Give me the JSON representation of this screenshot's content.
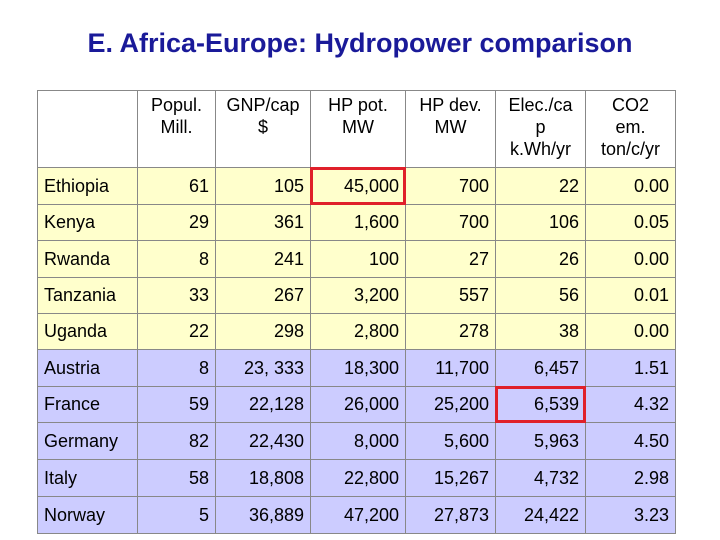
{
  "title": "E. Africa-Europe: Hydropower comparison",
  "table": {
    "header": [
      [
        "Popul.",
        "Mill."
      ],
      [
        "GNP/cap",
        "$"
      ],
      [
        "HP pot.",
        "MW"
      ],
      [
        "HP dev.",
        "MW"
      ],
      [
        "Elec./ca",
        "p",
        "k.Wh/yr"
      ],
      [
        "CO2",
        "em.",
        "ton/c/yr"
      ]
    ],
    "rows": [
      [
        "Ethiopia",
        "61",
        "105",
        "45,000",
        "700",
        "22",
        "0.00"
      ],
      [
        "Kenya",
        "29",
        "361",
        "1,600",
        "700",
        "106",
        "0.05"
      ],
      [
        "Rwanda",
        "8",
        "241",
        "100",
        "27",
        "26",
        "0.00"
      ],
      [
        "Tanzania",
        "33",
        "267",
        "3,200",
        "557",
        "56",
        "0.01"
      ],
      [
        "Uganda",
        "22",
        "298",
        "2,800",
        "278",
        "38",
        "0.00"
      ],
      [
        "Austria",
        "8",
        "23, 333",
        "18,300",
        "11,700",
        "6,457",
        "1.51"
      ],
      [
        "France",
        "59",
        "22,128",
        "26,000",
        "25,200",
        "6,539",
        "4.32"
      ],
      [
        "Germany",
        "82",
        "22,430",
        "8,000",
        "5,600",
        "5,963",
        "4.50"
      ],
      [
        "Italy",
        "58",
        "18,808",
        "22,800",
        "15,267",
        "4,732",
        "2.98"
      ],
      [
        "Norway",
        "5",
        "36,889",
        "47,200",
        "27,873",
        "24,422",
        "3.23"
      ]
    ]
  }
}
